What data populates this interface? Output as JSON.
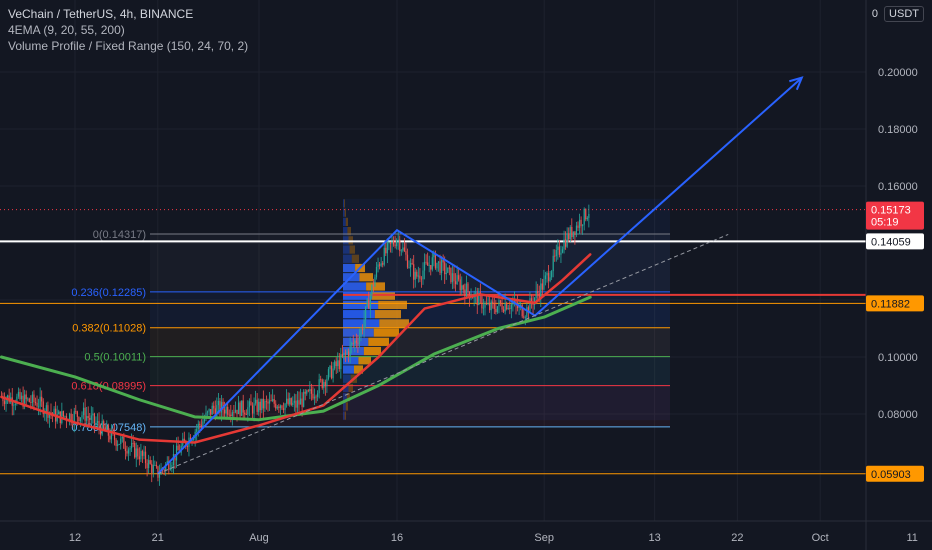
{
  "legend": {
    "title": "VeChain / TetherUS, 4h, BINANCE",
    "indicator1": "4EMA (9, 20, 55, 200)",
    "indicator2": "Volume Profile / Fixed Range (150, 24, 70, 2)"
  },
  "price_scale": {
    "top_value": "0",
    "currency": "USDT",
    "ticks": [
      "0.20000",
      "0.18000",
      "0.16000",
      "0.10000",
      "0.08000"
    ]
  },
  "badges": {
    "last_price": {
      "text": "0.15173",
      "countdown": "05:19",
      "color": "#f23645"
    },
    "level_white": {
      "text": "0.14059",
      "bg": "#ffffff",
      "fg": "#131722"
    },
    "level_orange_mid": {
      "text": "0.11882",
      "bg": "#ff9800",
      "fg": "#131722"
    },
    "level_orange_low": {
      "text": "0.05903",
      "bg": "#ff9800",
      "fg": "#131722"
    }
  },
  "fib_labels": [
    {
      "text": "0(0.14317)",
      "color": "#787b86"
    },
    {
      "text": "0.236(0.12285)",
      "color": "#2962ff"
    },
    {
      "text": "0.382(0.11028)",
      "color": "#ff9800"
    },
    {
      "text": "0.5(0.10011)",
      "color": "#4caf50"
    },
    {
      "text": "0.618(0.08995)",
      "color": "#f23645"
    },
    {
      "text": "0.786(0.07548)",
      "color": "#64b5f6"
    }
  ],
  "time_axis": [
    "12",
    "21",
    "Aug",
    "16",
    "Sep",
    "13",
    "22",
    "Oct",
    "11"
  ],
  "colors": {
    "background": "#131722",
    "ema_red": "#e53935",
    "ema_green": "#4caf50",
    "arrow_blue": "#2962ff"
  },
  "chart_data": {
    "type": "candlestick",
    "symbol": "VeChain / TetherUS",
    "timeframe": "4h",
    "exchange": "BINANCE",
    "ylim": [
      0.05,
      0.215
    ],
    "last_price": 0.15173,
    "countdown": "05:19",
    "horizontal_levels": [
      0.14059,
      0.11882,
      0.05903
    ],
    "fibonacci": [
      {
        "ratio": 0,
        "value": 0.14317
      },
      {
        "ratio": 0.236,
        "value": 0.12285
      },
      {
        "ratio": 0.382,
        "value": 0.11028
      },
      {
        "ratio": 0.5,
        "value": 0.10011
      },
      {
        "ratio": 0.618,
        "value": 0.08995
      },
      {
        "ratio": 0.786,
        "value": 0.07548
      }
    ],
    "price_path": [
      {
        "date": "2021-07-04",
        "price": 0.086
      },
      {
        "date": "2021-07-08",
        "price": 0.084
      },
      {
        "date": "2021-07-10",
        "price": 0.079
      },
      {
        "date": "2021-07-13",
        "price": 0.08
      },
      {
        "date": "2021-07-16",
        "price": 0.072
      },
      {
        "date": "2021-07-19",
        "price": 0.066
      },
      {
        "date": "2021-07-21",
        "price": 0.059
      },
      {
        "date": "2021-07-23",
        "price": 0.066
      },
      {
        "date": "2021-07-25",
        "price": 0.074
      },
      {
        "date": "2021-07-27",
        "price": 0.082
      },
      {
        "date": "2021-07-31",
        "price": 0.082
      },
      {
        "date": "2021-08-03",
        "price": 0.084
      },
      {
        "date": "2021-08-05",
        "price": 0.083
      },
      {
        "date": "2021-08-07",
        "price": 0.088
      },
      {
        "date": "2021-08-10",
        "price": 0.099
      },
      {
        "date": "2021-08-12",
        "price": 0.108
      },
      {
        "date": "2021-08-14",
        "price": 0.133
      },
      {
        "date": "2021-08-16",
        "price": 0.142
      },
      {
        "date": "2021-08-18",
        "price": 0.128
      },
      {
        "date": "2021-08-20",
        "price": 0.134
      },
      {
        "date": "2021-08-23",
        "price": 0.125
      },
      {
        "date": "2021-08-26",
        "price": 0.117
      },
      {
        "date": "2021-08-28",
        "price": 0.119
      },
      {
        "date": "2021-08-30",
        "price": 0.116
      },
      {
        "date": "2021-09-01",
        "price": 0.126
      },
      {
        "date": "2021-09-03",
        "price": 0.14
      },
      {
        "date": "2021-09-05",
        "price": 0.148
      },
      {
        "date": "2021-09-06",
        "price": 0.152
      }
    ],
    "ema_red": [
      {
        "date": "2021-07-04",
        "price": 0.086
      },
      {
        "date": "2021-07-12",
        "price": 0.077
      },
      {
        "date": "2021-07-19",
        "price": 0.071
      },
      {
        "date": "2021-07-25",
        "price": 0.07
      },
      {
        "date": "2021-08-01",
        "price": 0.076
      },
      {
        "date": "2021-08-08",
        "price": 0.083
      },
      {
        "date": "2021-08-14",
        "price": 0.1
      },
      {
        "date": "2021-08-19",
        "price": 0.117
      },
      {
        "date": "2021-08-25",
        "price": 0.122
      },
      {
        "date": "2021-08-31",
        "price": 0.119
      },
      {
        "date": "2021-09-03",
        "price": 0.127
      },
      {
        "date": "2021-09-06",
        "price": 0.136
      }
    ],
    "ema_green": [
      {
        "date": "2021-07-04",
        "price": 0.1
      },
      {
        "date": "2021-07-12",
        "price": 0.093
      },
      {
        "date": "2021-07-19",
        "price": 0.085
      },
      {
        "date": "2021-07-25",
        "price": 0.079
      },
      {
        "date": "2021-08-01",
        "price": 0.078
      },
      {
        "date": "2021-08-08",
        "price": 0.081
      },
      {
        "date": "2021-08-14",
        "price": 0.09
      },
      {
        "date": "2021-08-20",
        "price": 0.101
      },
      {
        "date": "2021-08-27",
        "price": 0.11
      },
      {
        "date": "2021-09-01",
        "price": 0.114
      },
      {
        "date": "2021-09-06",
        "price": 0.121
      }
    ],
    "drawings": {
      "zigzag": [
        {
          "date": "2021-07-21",
          "price": 0.059
        },
        {
          "date": "2021-08-16",
          "price": 0.1445
        },
        {
          "date": "2021-08-31",
          "price": 0.1145
        },
        {
          "date": "2021-09-29",
          "price": 0.198
        }
      ],
      "dashed_trendline": [
        {
          "date": "2021-07-21",
          "price": 0.059
        },
        {
          "date": "2021-09-21",
          "price": 0.143
        }
      ]
    }
  }
}
